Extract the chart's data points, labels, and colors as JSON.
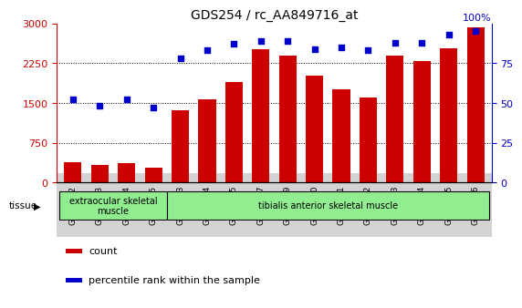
{
  "title": "GDS254 / rc_AA849716_at",
  "categories": [
    "GSM4242",
    "GSM4243",
    "GSM4244",
    "GSM4245",
    "GSM5553",
    "GSM5554",
    "GSM5555",
    "GSM5557",
    "GSM5559",
    "GSM5560",
    "GSM5561",
    "GSM5562",
    "GSM5563",
    "GSM5564",
    "GSM5565",
    "GSM5566"
  ],
  "counts": [
    390,
    340,
    370,
    280,
    1360,
    1560,
    1900,
    2520,
    2400,
    2020,
    1760,
    1610,
    2390,
    2290,
    2530,
    2920
  ],
  "percentile": [
    52,
    48,
    52,
    47,
    78,
    83,
    87,
    89,
    89,
    84,
    85,
    83,
    88,
    88,
    93,
    95
  ],
  "bar_color": "#cc0000",
  "dot_color": "#0000cc",
  "ylim_left": [
    0,
    3000
  ],
  "ylim_right": [
    0,
    100
  ],
  "yticks_left": [
    0,
    750,
    1500,
    2250,
    3000
  ],
  "yticks_right": [
    0,
    25,
    50,
    75
  ],
  "yticks_right_labels": [
    "0",
    "25",
    "50",
    "75"
  ],
  "right_top_label": "100%",
  "tissue_groups": [
    {
      "label": "extraocular skeletal\nmuscle",
      "span": [
        0,
        4
      ]
    },
    {
      "label": "tibialis anterior skeletal muscle",
      "span": [
        4,
        16
      ]
    }
  ],
  "tissue_box_color": "#90ee90",
  "tissue_label": "tissue",
  "legend_count_label": "count",
  "legend_pct_label": "percentile rank within the sample",
  "tick_label_bg": "#d3d3d3",
  "left_axis_color": "#cc0000",
  "right_axis_color": "#0000cc"
}
